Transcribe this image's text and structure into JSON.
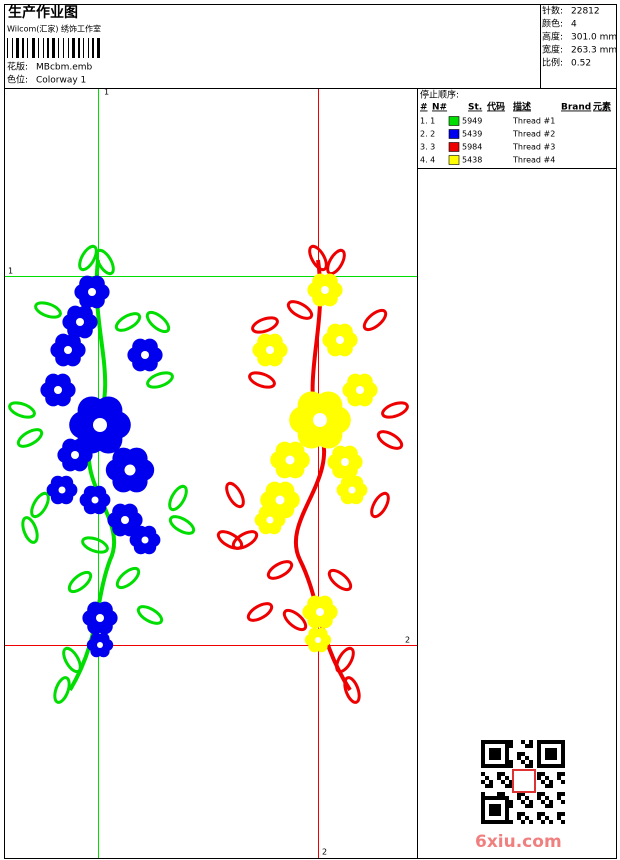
{
  "header": {
    "title": "生产作业图",
    "studio": "Wilcom(汇家) 绣饰工作室",
    "design_label": "花版:",
    "design": "MBcbm.emb",
    "colorway_label": "色位:",
    "colorway": "Colorway 1"
  },
  "info": [
    {
      "label": "针数:",
      "value": "22812"
    },
    {
      "label": "颜色:",
      "value": "4"
    },
    {
      "label": "高度:",
      "value": "301.0 mm"
    },
    {
      "label": "宽度:",
      "value": "263.3 mm"
    },
    {
      "label": "比例:",
      "value": "0.52"
    }
  ],
  "guides": {
    "vertical_1": "1",
    "horizontal_1": "1",
    "horizontal_2": "2",
    "vertical_2": "2"
  },
  "stop_sequence": {
    "title": "停止顺序:",
    "columns": [
      "#",
      "N#",
      "St.",
      "代码",
      "描述",
      "Brand",
      "元素"
    ],
    "rows": [
      {
        "index": "1. 1",
        "color": "#00dd00",
        "code": "5949",
        "description": "Thread #1"
      },
      {
        "index": "2. 2",
        "color": "#0000ee",
        "code": "5439",
        "description": "Thread #2"
      },
      {
        "index": "3. 3",
        "color": "#ee0000",
        "code": "5984",
        "description": "Thread #3"
      },
      {
        "index": "4. 4",
        "color": "#ffff00",
        "code": "5438",
        "description": "Thread #4"
      }
    ]
  },
  "watermark": "6xiu.com"
}
